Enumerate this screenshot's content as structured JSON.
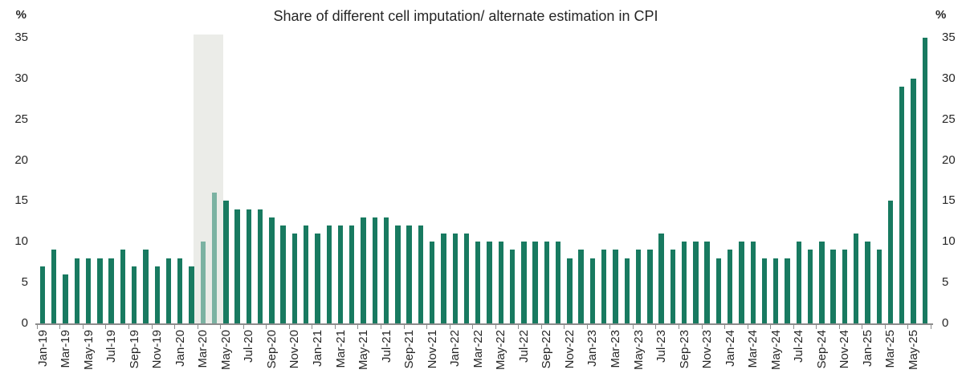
{
  "chart_data": {
    "type": "bar",
    "title": "Share of different cell imputation/ alternate estimation in CPI",
    "y_unit": "%",
    "ylim": [
      0,
      35
    ],
    "y_ticks": [
      0,
      5,
      10,
      15,
      20,
      25,
      30,
      35
    ],
    "x_label_every": 2,
    "grid": "off",
    "legend": "none",
    "categories": [
      "Jan-19",
      "Feb-19",
      "Mar-19",
      "Apr-19",
      "May-19",
      "Jun-19",
      "Jul-19",
      "Aug-19",
      "Sep-19",
      "Oct-19",
      "Nov-19",
      "Dec-19",
      "Jan-20",
      "Feb-20",
      "Mar-20",
      "Apr-20",
      "May-20",
      "Jun-20",
      "Jul-20",
      "Aug-20",
      "Sep-20",
      "Oct-20",
      "Nov-20",
      "Dec-20",
      "Jan-21",
      "Feb-21",
      "Mar-21",
      "Apr-21",
      "May-21",
      "Jun-21",
      "Jul-21",
      "Aug-21",
      "Sep-21",
      "Oct-21",
      "Nov-21",
      "Dec-21",
      "Jan-22",
      "Feb-22",
      "Mar-22",
      "Apr-22",
      "May-22",
      "Jun-22",
      "Jul-22",
      "Aug-22",
      "Sep-22",
      "Oct-22",
      "Nov-22",
      "Dec-22",
      "Jan-23",
      "Feb-23",
      "Mar-23",
      "Apr-23",
      "May-23",
      "Jun-23",
      "Jul-23",
      "Aug-23",
      "Sep-23",
      "Oct-23",
      "Nov-23",
      "Dec-23",
      "Jan-24",
      "Feb-24",
      "Mar-24",
      "Apr-24",
      "May-24",
      "Jun-24",
      "Jul-24",
      "Aug-24",
      "Sep-24",
      "Oct-24",
      "Nov-24",
      "Dec-24",
      "Jan-25",
      "Feb-25",
      "Mar-25",
      "Apr-25",
      "May-25",
      "Jun-25"
    ],
    "values": [
      7,
      9,
      6,
      8,
      8,
      8,
      8,
      9,
      7,
      9,
      7,
      8,
      8,
      7,
      10,
      16,
      15,
      14,
      14,
      14,
      13,
      12,
      11,
      12,
      11,
      12,
      12,
      12,
      13,
      13,
      13,
      12,
      12,
      12,
      10,
      11,
      11,
      11,
      10,
      10,
      10,
      9,
      10,
      10,
      10,
      10,
      8,
      9,
      8,
      9,
      9,
      8,
      9,
      9,
      11,
      9,
      10,
      10,
      10,
      8,
      9,
      10,
      10,
      8,
      8,
      8,
      10,
      9,
      10,
      9,
      9,
      11,
      10,
      9,
      15,
      29,
      30,
      35
    ],
    "faded_indices": [
      14,
      15
    ],
    "shaded_band": {
      "from": "Mar-20",
      "to": "Apr-20"
    },
    "colors": {
      "bar": "#187a60",
      "bar_faded": "#7bb2a2",
      "band": "#ebece8",
      "axis": "#8c8c8c",
      "text": "#262626"
    }
  }
}
